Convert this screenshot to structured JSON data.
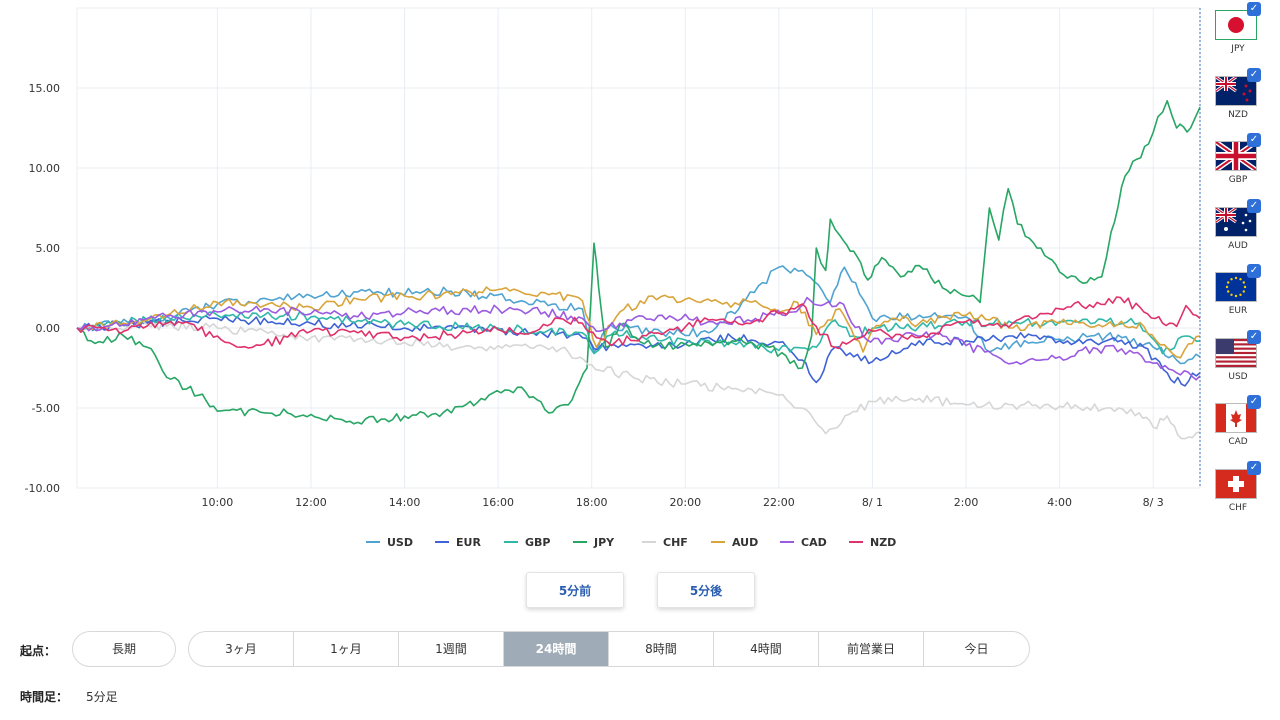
{
  "chart_data": {
    "type": "line",
    "ylim": [
      -10,
      20
    ],
    "y_ticks": [
      15,
      10,
      5,
      0,
      -5,
      -10
    ],
    "y_tick_labels": [
      "15.00",
      "10.00",
      "5.00",
      "0.00",
      "-5.00",
      "-10.00"
    ],
    "x_ticks": [
      {
        "hour": 10,
        "label": "10:00"
      },
      {
        "hour": 12,
        "label": "12:00"
      },
      {
        "hour": 14,
        "label": "14:00"
      },
      {
        "hour": 16,
        "label": "16:00"
      },
      {
        "hour": 18,
        "label": "18:00"
      },
      {
        "hour": 20,
        "label": "20:00"
      },
      {
        "hour": 22,
        "label": "22:00"
      },
      {
        "hour": 24,
        "label": "8/ 1"
      },
      {
        "hour": 26,
        "label": "2:00"
      },
      {
        "hour": 28,
        "label": "4:00"
      },
      {
        "hour": 30,
        "label": "8/ 3"
      }
    ],
    "x_range_hours": [
      7,
      31
    ],
    "grid": true,
    "legend_position": "bottom",
    "series": [
      {
        "name": "USD",
        "color": "#4fa3d1",
        "points": [
          [
            7,
            0
          ],
          [
            8.5,
            0.4
          ],
          [
            10,
            1.5
          ],
          [
            12,
            2
          ],
          [
            13.5,
            2.2
          ],
          [
            15,
            2.3
          ],
          [
            16.5,
            1.7
          ],
          [
            17.8,
            1.2
          ],
          [
            18.05,
            -1.5
          ],
          [
            18.4,
            0.2
          ],
          [
            19.5,
            -0.3
          ],
          [
            20.5,
            -0.3
          ],
          [
            21.3,
            1.8
          ],
          [
            22,
            3.8
          ],
          [
            22.5,
            3.6
          ],
          [
            23.1,
            1.6
          ],
          [
            23.4,
            3.8
          ],
          [
            23.8,
            1.8
          ],
          [
            24,
            0.6
          ],
          [
            25,
            0.8
          ],
          [
            26,
            0.7
          ],
          [
            26.5,
            -1.5
          ],
          [
            27,
            -1
          ],
          [
            28,
            -0.7
          ],
          [
            29,
            -0.5
          ],
          [
            30,
            -1.2
          ],
          [
            30.5,
            -2
          ],
          [
            31,
            -1.8
          ]
        ]
      },
      {
        "name": "EUR",
        "color": "#3e63d6",
        "points": [
          [
            7,
            0
          ],
          [
            8.5,
            0.3
          ],
          [
            10,
            0.6
          ],
          [
            12,
            0.3
          ],
          [
            14,
            0
          ],
          [
            16,
            -0.1
          ],
          [
            17.8,
            -0.6
          ],
          [
            18.05,
            -1.3
          ],
          [
            19,
            -1
          ],
          [
            20,
            -1
          ],
          [
            21,
            -0.6
          ],
          [
            22,
            -0.9
          ],
          [
            22.5,
            -2
          ],
          [
            22.8,
            -3.4
          ],
          [
            23.2,
            -1.2
          ],
          [
            23.6,
            -1.8
          ],
          [
            24,
            -2.1
          ],
          [
            24.5,
            -1.6
          ],
          [
            25,
            -0.8
          ],
          [
            26,
            -0.8
          ],
          [
            27,
            -0.5
          ],
          [
            28,
            -0.8
          ],
          [
            29,
            -0.8
          ],
          [
            29.8,
            -1.2
          ],
          [
            30.3,
            -2.8
          ],
          [
            30.6,
            -3.5
          ],
          [
            31,
            -2.8
          ]
        ]
      },
      {
        "name": "GBP",
        "color": "#2fb8a8",
        "points": [
          [
            7,
            0
          ],
          [
            8.5,
            0.5
          ],
          [
            10,
            0.8
          ],
          [
            12,
            0.7
          ],
          [
            14,
            0.2
          ],
          [
            16,
            0
          ],
          [
            17.8,
            -0.3
          ],
          [
            18.05,
            -1.6
          ],
          [
            18.5,
            -0.2
          ],
          [
            19.5,
            -0.8
          ],
          [
            21,
            -0.9
          ],
          [
            22,
            -1.4
          ],
          [
            22.8,
            -1.2
          ],
          [
            23.2,
            0.5
          ],
          [
            23.6,
            -0.5
          ],
          [
            24,
            0
          ],
          [
            25,
            0.1
          ],
          [
            26,
            0.4
          ],
          [
            27,
            0.3
          ],
          [
            28,
            0.4
          ],
          [
            29,
            0.4
          ],
          [
            29.7,
            0.3
          ],
          [
            30.2,
            -1.6
          ],
          [
            30.7,
            -0.5
          ],
          [
            31,
            -0.8
          ]
        ]
      },
      {
        "name": "JPY",
        "color": "#27a664",
        "points": [
          [
            7,
            0
          ],
          [
            7.3,
            -0.8
          ],
          [
            8,
            -0.5
          ],
          [
            8.5,
            -1.2
          ],
          [
            9,
            -3.2
          ],
          [
            9.6,
            -4.2
          ],
          [
            10,
            -5.2
          ],
          [
            11,
            -5.3
          ],
          [
            12,
            -5.4
          ],
          [
            13,
            -5.9
          ],
          [
            14,
            -5.5
          ],
          [
            15,
            -5.3
          ],
          [
            15.8,
            -4.2
          ],
          [
            16.5,
            -3.7
          ],
          [
            17,
            -5.1
          ],
          [
            17.5,
            -4.8
          ],
          [
            17.9,
            -2.5
          ],
          [
            18.05,
            5.3
          ],
          [
            18.15,
            2.5
          ],
          [
            18.3,
            -1.2
          ],
          [
            18.6,
            0.2
          ],
          [
            19.3,
            -1.2
          ],
          [
            20,
            -1
          ],
          [
            21,
            -0.8
          ],
          [
            21.8,
            -1.2
          ],
          [
            22.5,
            -2.5
          ],
          [
            22.7,
            -0.5
          ],
          [
            22.8,
            5
          ],
          [
            23,
            3.6
          ],
          [
            23.1,
            6.8
          ],
          [
            23.3,
            5.8
          ],
          [
            23.6,
            4.8
          ],
          [
            23.9,
            3
          ],
          [
            24.2,
            4.4
          ],
          [
            24.6,
            3.2
          ],
          [
            25,
            3.9
          ],
          [
            25.5,
            2.5
          ],
          [
            26,
            2
          ],
          [
            26.3,
            1.6
          ],
          [
            26.5,
            7.5
          ],
          [
            26.7,
            5.5
          ],
          [
            26.9,
            8.7
          ],
          [
            27.1,
            6.5
          ],
          [
            27.6,
            5
          ],
          [
            28,
            3.5
          ],
          [
            28.5,
            2.8
          ],
          [
            28.9,
            3.2
          ],
          [
            29.1,
            6
          ],
          [
            29.4,
            9.5
          ],
          [
            29.9,
            11.5
          ],
          [
            30.1,
            13.2
          ],
          [
            30.3,
            14.2
          ],
          [
            30.5,
            12.5
          ],
          [
            30.8,
            12.5
          ],
          [
            31,
            13.8
          ]
        ]
      },
      {
        "name": "CHF",
        "color": "#d6d6d6",
        "points": [
          [
            7,
            0
          ],
          [
            8.5,
            0.2
          ],
          [
            10,
            0
          ],
          [
            12,
            -0.6
          ],
          [
            14,
            -0.9
          ],
          [
            15.5,
            -1.3
          ],
          [
            16.5,
            -1.1
          ],
          [
            17.5,
            -1.5
          ],
          [
            18,
            -2.3
          ],
          [
            19,
            -3.2
          ],
          [
            20,
            -3.5
          ],
          [
            21,
            -3.8
          ],
          [
            22,
            -4.2
          ],
          [
            22.5,
            -5
          ],
          [
            23,
            -6.6
          ],
          [
            23.5,
            -5.4
          ],
          [
            24,
            -4.6
          ],
          [
            25,
            -4.4
          ],
          [
            26,
            -4.8
          ],
          [
            27,
            -4.8
          ],
          [
            28,
            -4.9
          ],
          [
            29,
            -5
          ],
          [
            29.7,
            -5.3
          ],
          [
            30,
            -6.2
          ],
          [
            30.3,
            -5.5
          ],
          [
            30.6,
            -6.9
          ],
          [
            31,
            -6.5
          ]
        ]
      },
      {
        "name": "AUD",
        "color": "#d9a43a",
        "points": [
          [
            7,
            0
          ],
          [
            8,
            0.3
          ],
          [
            9,
            0.9
          ],
          [
            10,
            1.6
          ],
          [
            11,
            1.4
          ],
          [
            12,
            1.3
          ],
          [
            13,
            1.8
          ],
          [
            14,
            2.0
          ],
          [
            15,
            2.1
          ],
          [
            16,
            2.4
          ],
          [
            17,
            2.2
          ],
          [
            17.8,
            1.7
          ],
          [
            18.1,
            -1.2
          ],
          [
            18.6,
            1.0
          ],
          [
            19.3,
            2.0
          ],
          [
            20,
            1.8
          ],
          [
            20.8,
            1.5
          ],
          [
            21.5,
            1.7
          ],
          [
            22,
            1.0
          ],
          [
            22.4,
            1.6
          ],
          [
            22.8,
            -0.4
          ],
          [
            23.3,
            1.2
          ],
          [
            23.8,
            -1.5
          ],
          [
            24,
            -0.1
          ],
          [
            24.5,
            0.6
          ],
          [
            25,
            0.3
          ],
          [
            26,
            0.8
          ],
          [
            26.5,
            0.5
          ],
          [
            27,
            0.0
          ],
          [
            28,
            0.3
          ],
          [
            29,
            0.2
          ],
          [
            29.8,
            0.1
          ],
          [
            30.5,
            -1.8
          ],
          [
            31,
            -0.5
          ]
        ]
      },
      {
        "name": "CAD",
        "color": "#9a5be0",
        "points": [
          [
            7,
            0
          ],
          [
            8,
            0.2
          ],
          [
            9,
            0.8
          ],
          [
            10,
            1.0
          ],
          [
            11,
            1.2
          ],
          [
            12,
            0.9
          ],
          [
            13,
            0.7
          ],
          [
            14,
            1.0
          ],
          [
            15,
            1.1
          ],
          [
            16,
            1.2
          ],
          [
            17,
            1.0
          ],
          [
            17.8,
            0.6
          ],
          [
            18.1,
            -0.2
          ],
          [
            18.6,
            0.3
          ],
          [
            19.5,
            0.8
          ],
          [
            20.5,
            0.4
          ],
          [
            21.5,
            0.6
          ],
          [
            22.3,
            1.0
          ],
          [
            22.6,
            1.9
          ],
          [
            22.9,
            1.4
          ],
          [
            23.3,
            1.6
          ],
          [
            23.8,
            -0.5
          ],
          [
            24.2,
            -1.0
          ],
          [
            24.8,
            -0.3
          ],
          [
            25.5,
            -0.5
          ],
          [
            26,
            -1.1
          ],
          [
            26.4,
            -1.5
          ],
          [
            27,
            -2.2
          ],
          [
            28,
            -1.8
          ],
          [
            28.8,
            -1.3
          ],
          [
            29.5,
            -1.4
          ],
          [
            30,
            -2.2
          ],
          [
            30.5,
            -2.8
          ],
          [
            31,
            -3.0
          ]
        ]
      },
      {
        "name": "NZD",
        "color": "#e0326a",
        "points": [
          [
            7,
            0
          ],
          [
            8,
            -0.2
          ],
          [
            9,
            0.4
          ],
          [
            10,
            -0.5
          ],
          [
            10.5,
            -1.2
          ],
          [
            11,
            -1.0
          ],
          [
            12,
            -0.2
          ],
          [
            13,
            -0.3
          ],
          [
            14,
            -0.6
          ],
          [
            15,
            -0.4
          ],
          [
            16,
            -0.1
          ],
          [
            16.8,
            -0.2
          ],
          [
            17.3,
            0.6
          ],
          [
            17.8,
            0.3
          ],
          [
            18.1,
            -0.6
          ],
          [
            18.5,
            -0.9
          ],
          [
            19.5,
            -0.4
          ],
          [
            20.5,
            0.5
          ],
          [
            21.3,
            0.3
          ],
          [
            22,
            0.9
          ],
          [
            22.5,
            1.5
          ],
          [
            22.8,
            0.1
          ],
          [
            23.2,
            -1.2
          ],
          [
            23.6,
            -0.7
          ],
          [
            24,
            -0.2
          ],
          [
            24.5,
            -0.4
          ],
          [
            25,
            -0.6
          ],
          [
            26,
            0.4
          ],
          [
            27,
            0.3
          ],
          [
            28,
            1.2
          ],
          [
            28.8,
            1.6
          ],
          [
            29.3,
            1.9
          ],
          [
            29.8,
            1.0
          ],
          [
            30.2,
            0.3
          ],
          [
            30.5,
            0.1
          ],
          [
            30.7,
            1.4
          ],
          [
            31,
            0.6
          ]
        ]
      }
    ]
  },
  "flags": [
    {
      "code": "JPY",
      "icon": "jp-flag-icon"
    },
    {
      "code": "NZD",
      "icon": "nz-flag-icon"
    },
    {
      "code": "GBP",
      "icon": "gb-flag-icon"
    },
    {
      "code": "AUD",
      "icon": "au-flag-icon"
    },
    {
      "code": "EUR",
      "icon": "eu-flag-icon"
    },
    {
      "code": "USD",
      "icon": "us-flag-icon"
    },
    {
      "code": "CAD",
      "icon": "ca-flag-icon"
    },
    {
      "code": "CHF",
      "icon": "ch-flag-icon"
    }
  ],
  "checkmark": "✓",
  "nav": {
    "prev": "5分前",
    "next": "5分後"
  },
  "start": {
    "label": "起点：",
    "long": "長期",
    "options": [
      "3ヶ月",
      "1ヶ月",
      "1週間",
      "24時間",
      "8時間",
      "4時間",
      "前営業日",
      "今日"
    ],
    "active": "24時間"
  },
  "timeframe": {
    "label": "時間足：",
    "value": "5分足"
  }
}
